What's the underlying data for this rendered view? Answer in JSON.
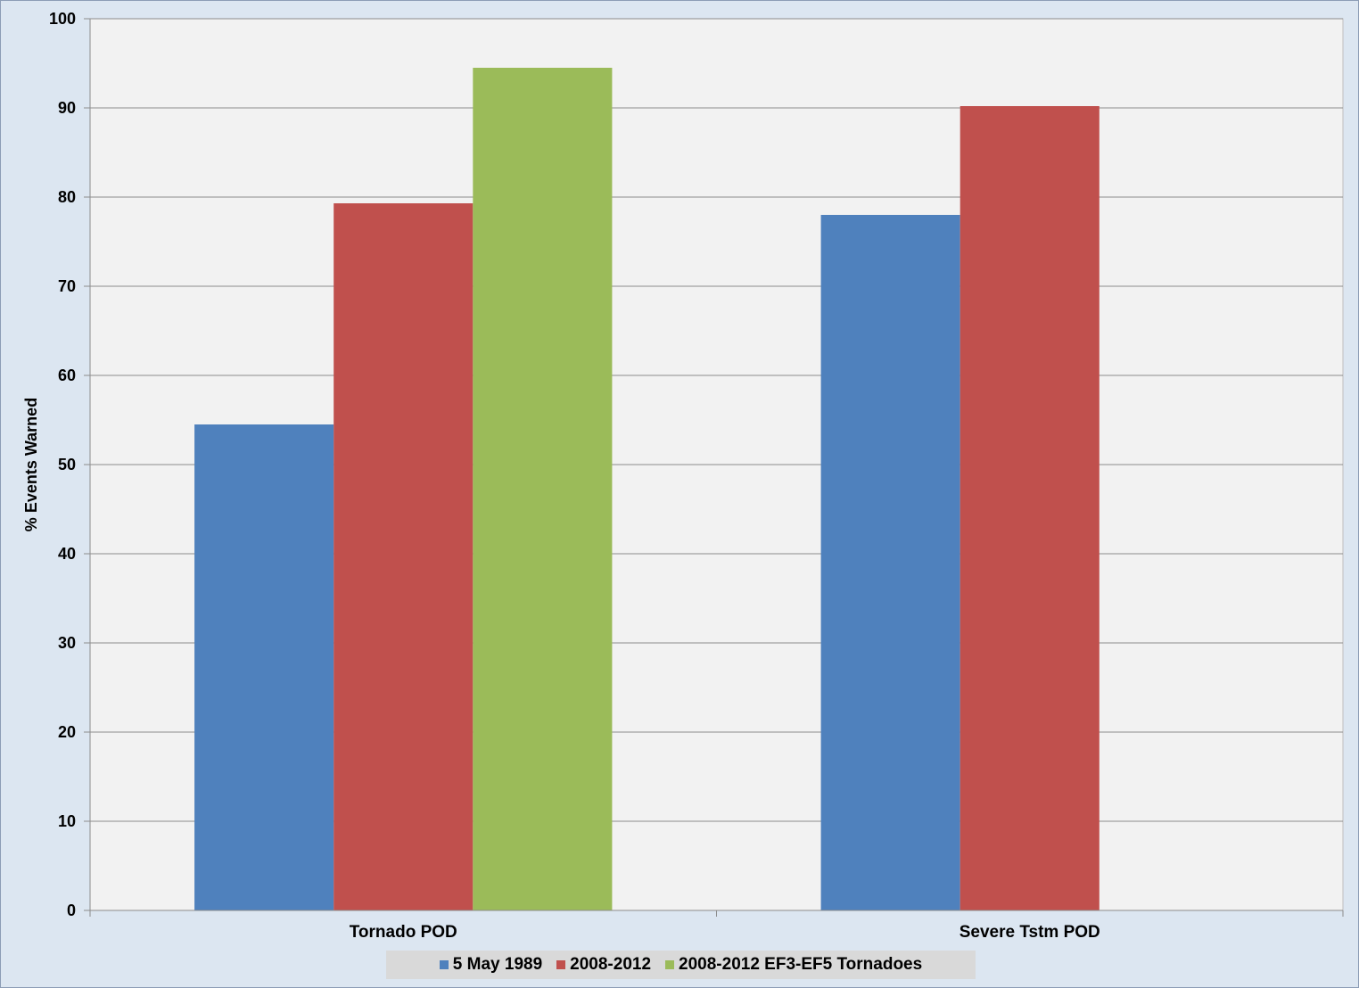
{
  "chart_data": {
    "type": "bar",
    "title": "",
    "xlabel": "",
    "ylabel": "%  Events Warned",
    "ylim": [
      0,
      100
    ],
    "yticks": [
      0,
      10,
      20,
      30,
      40,
      50,
      60,
      70,
      80,
      90,
      100
    ],
    "categories": [
      "Tornado POD",
      "Severe Tstm POD"
    ],
    "series": [
      {
        "name": "5 May 1989",
        "color": "#4f81bd",
        "values": [
          54.5,
          78.0
        ]
      },
      {
        "name": "2008-2012",
        "color": "#c0504d",
        "values": [
          79.3,
          90.2
        ]
      },
      {
        "name": "2008-2012 EF3-EF5 Tornadoes",
        "color": "#9bbb59",
        "values": [
          94.5,
          null
        ]
      }
    ],
    "grid": true,
    "legend_position": "bottom",
    "plot_background": "#f2f2f2",
    "frame_background": "#dce6f1"
  }
}
